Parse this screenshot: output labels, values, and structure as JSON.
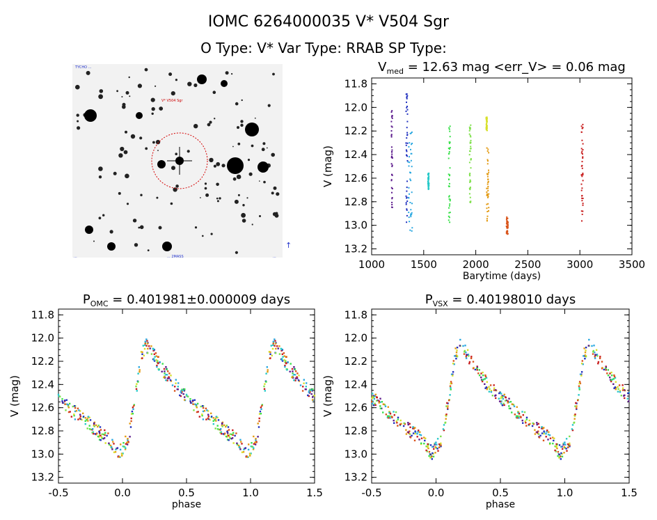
{
  "header": {
    "title": "IOMC 6264000035    V* V504 Sgr",
    "subtitle": "O Type: V*   Var Type: RRAB   SP Type:"
  },
  "finder": {
    "label_top_left": "TYCHO ...",
    "label_target": "V* V504 Sgr",
    "label_bottom": "... 2MASS",
    "label_bottom_left": "...",
    "label_bottom_right": "...",
    "compass": "↑"
  },
  "chart_data": [
    {
      "type": "scatter",
      "title": "V_med = 12.63 mag <err_V> = 0.06 mag",
      "title_parts": {
        "main": "V",
        "sub": "med",
        "rest": " = 12.63 mag <err_V> = 0.06 mag"
      },
      "xlabel": "Barytime (days)",
      "ylabel": "V (mag)",
      "xlim": [
        1000,
        3500
      ],
      "ylim": [
        13.25,
        11.75
      ],
      "xticks": [
        1000,
        1500,
        2000,
        2500,
        3000,
        3500
      ],
      "yticks": [
        11.8,
        12.0,
        12.2,
        12.4,
        12.6,
        12.8,
        13.0,
        13.2
      ],
      "series": [
        {
          "color": "#5b1a8c",
          "x": [
            1190,
            1200
          ],
          "y": [
            [
              12.0,
              12.88
            ]
          ]
        },
        {
          "color": "#1f2fbf",
          "x": [
            1330,
            1345
          ],
          "y": [
            [
              11.88,
              13.0
            ]
          ]
        },
        {
          "color": "#2aa8e0",
          "x": [
            1350,
            1390
          ],
          "y": [
            [
              12.2,
              13.05
            ]
          ]
        },
        {
          "color": "#27c9c9",
          "x": [
            1540,
            1550
          ],
          "y": [
            [
              12.55,
              12.7
            ]
          ]
        },
        {
          "color": "#39e04a",
          "x": [
            1740,
            1755
          ],
          "y": [
            [
              12.15,
              13.03
            ]
          ]
        },
        {
          "color": "#7ee04a",
          "x": [
            1940,
            1955
          ],
          "y": [
            [
              12.15,
              12.88
            ]
          ]
        },
        {
          "color": "#d7e02a",
          "x": [
            2100,
            2110
          ],
          "y": [
            [
              12.08,
              12.2
            ]
          ]
        },
        {
          "color": "#e39a12",
          "x": [
            2105,
            2125
          ],
          "y": [
            [
              12.32,
              12.98
            ]
          ]
        },
        {
          "color": "#d9541a",
          "x": [
            2295,
            2310
          ],
          "y": [
            [
              12.93,
              13.08
            ]
          ]
        },
        {
          "color": "#c81e1e",
          "x": [
            3015,
            3030
          ],
          "y": [
            [
              12.1,
              13.0
            ]
          ]
        }
      ]
    },
    {
      "type": "scatter",
      "title": "P_OMC = 0.401981±0.000009 days",
      "title_parts": {
        "main": "P",
        "sub": "OMC",
        "rest": " = 0.401981±0.000009 days"
      },
      "xlabel": "phase",
      "ylabel": "V (mag)",
      "xlim": [
        -0.5,
        1.5
      ],
      "ylim": [
        13.25,
        11.75
      ],
      "xticks": [
        -0.5,
        0.0,
        0.5,
        1.0,
        1.5
      ],
      "yticks": [
        11.8,
        12.0,
        12.2,
        12.4,
        12.6,
        12.8,
        13.0,
        13.2
      ],
      "light_curve": {
        "phase": [
          0.0,
          0.05,
          0.1,
          0.15,
          0.18,
          0.22,
          0.3,
          0.4,
          0.5,
          0.6,
          0.7,
          0.8,
          0.9,
          0.97,
          1.0
        ],
        "mag": [
          12.95,
          12.85,
          12.5,
          12.15,
          12.05,
          12.1,
          12.25,
          12.4,
          12.5,
          12.62,
          12.7,
          12.8,
          12.88,
          13.0,
          12.95
        ],
        "scatter": 0.06,
        "colors": [
          "#5b1a8c",
          "#1f2fbf",
          "#2aa8e0",
          "#27c9c9",
          "#39e04a",
          "#7ee04a",
          "#d7e02a",
          "#e39a12",
          "#d9541a",
          "#c81e1e"
        ]
      }
    },
    {
      "type": "scatter",
      "title": "P_VSX = 0.40198010 days",
      "title_parts": {
        "main": "P",
        "sub": "VSX",
        "rest": " = 0.40198010 days"
      },
      "xlabel": "phase",
      "ylabel": "V (mag)",
      "xlim": [
        -0.5,
        1.5
      ],
      "ylim": [
        13.25,
        11.75
      ],
      "xticks": [
        -0.5,
        0.0,
        0.5,
        1.0,
        1.5
      ],
      "yticks": [
        11.8,
        12.0,
        12.2,
        12.4,
        12.6,
        12.8,
        13.0,
        13.2
      ],
      "light_curve": {
        "phase": [
          0.0,
          0.05,
          0.1,
          0.15,
          0.18,
          0.22,
          0.3,
          0.4,
          0.5,
          0.6,
          0.7,
          0.8,
          0.9,
          0.97,
          1.0
        ],
        "mag": [
          12.95,
          12.85,
          12.5,
          12.15,
          12.05,
          12.1,
          12.25,
          12.4,
          12.5,
          12.62,
          12.7,
          12.8,
          12.88,
          13.0,
          12.95
        ],
        "scatter": 0.06,
        "colors": [
          "#5b1a8c",
          "#1f2fbf",
          "#2aa8e0",
          "#27c9c9",
          "#39e04a",
          "#7ee04a",
          "#d7e02a",
          "#e39a12",
          "#d9541a",
          "#c81e1e"
        ]
      }
    }
  ]
}
